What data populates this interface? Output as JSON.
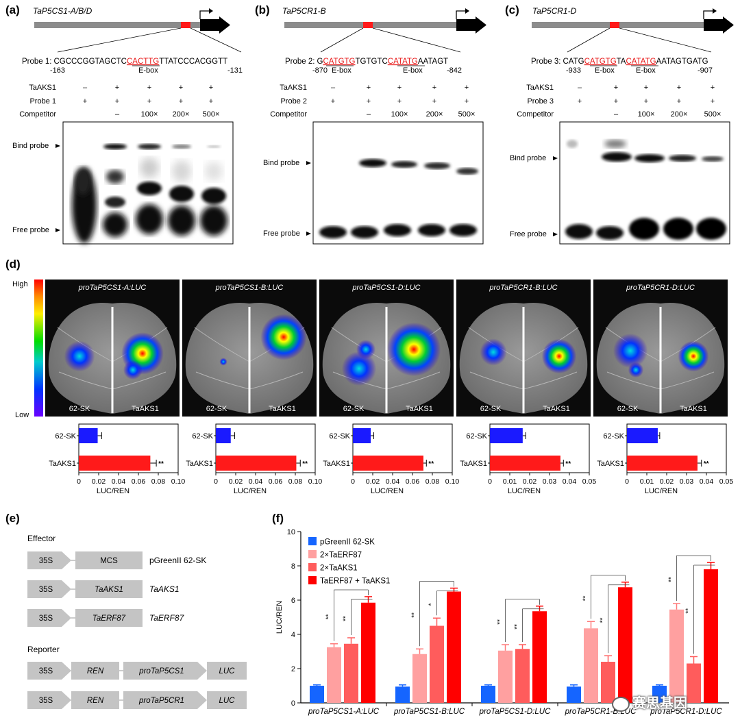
{
  "panel_a": {
    "letter": "(a)",
    "gene": "TaP5CS1-A/B/D",
    "probe_label": "Probe 1:",
    "seq_pre": "CGCCCGGTAGCTC",
    "seq_ebox": "CACTTG",
    "seq_post": "TTATCCCACGGTT",
    "pos_left": "-163",
    "pos_right": "-131",
    "ebox_label": "E-box",
    "row_labels": [
      "TaAKS1",
      "Probe 1",
      "Competitor"
    ],
    "row1": [
      "–",
      "+",
      "+",
      "+",
      "+"
    ],
    "row2": [
      "+",
      "+",
      "+",
      "+",
      "+"
    ],
    "row3": [
      "",
      "–",
      "100×",
      "200×",
      "500×"
    ],
    "bind_label": "Bind probe",
    "free_label": "Free probe"
  },
  "panel_b": {
    "letter": "(b)",
    "gene": "TaP5CR1-B",
    "probe_label": "Probe 2:",
    "seq_p1": "G",
    "seq_e1": "CATGTG",
    "seq_p2": "TGTGTC",
    "seq_e2": "CATATG",
    "seq_p3": "AATAGT",
    "pos_left": "-870",
    "pos_right": "-842",
    "ebox_label": "E-box",
    "row_labels": [
      "TaAKS1",
      "Probe 2",
      "Competitor"
    ],
    "row1": [
      "–",
      "+",
      "+",
      "+",
      "+"
    ],
    "row2": [
      "+",
      "+",
      "+",
      "+",
      "+"
    ],
    "row3": [
      "",
      "–",
      "100×",
      "200×",
      "500×"
    ],
    "bind_label": "Bind probe",
    "free_label": "Free probe"
  },
  "panel_c": {
    "letter": "(c)",
    "gene": "TaP5CR1-D",
    "probe_label": "Probe 3:",
    "seq_p1": "CATG",
    "seq_e1": "CATGTG",
    "seq_p2": "TA",
    "seq_e2": "CATATG",
    "seq_p3": "AATAGTGATG",
    "pos_left": "-933",
    "pos_right": "-907",
    "ebox_label": "E-box",
    "row_labels": [
      "TaAKS1",
      "Probe 3",
      "Competitor"
    ],
    "row1": [
      "–",
      "+",
      "+",
      "+",
      "+"
    ],
    "row2": [
      "+",
      "+",
      "+",
      "+",
      "+"
    ],
    "row3": [
      "",
      "–",
      "100×",
      "200×",
      "500×"
    ],
    "bind_label": "Bind probe",
    "free_label": "Free probe"
  },
  "panel_d": {
    "letter": "(d)",
    "scale_high": "High",
    "scale_low": "Low",
    "leaf_left_label": "62-SK",
    "leaf_right_label": "TaAKS1",
    "xlabel": "LUC/REN",
    "leaves": [
      {
        "title": "proTaP5CS1-A:LUC"
      },
      {
        "title": "proTaP5CS1-B:LUC"
      },
      {
        "title": "proTaP5CS1-D:LUC"
      },
      {
        "title": "proTaP5CR1-B:LUC"
      },
      {
        "title": "proTaP5CR1-D:LUC"
      }
    ]
  },
  "panel_e": {
    "letter": "(e)",
    "effector_title": "Effector",
    "reporter_title": "Reporter",
    "promoter": "35S",
    "effectors": [
      {
        "box": "MCS",
        "name": "pGreenII 62-SK"
      },
      {
        "box": "TaAKS1",
        "name": "TaAKS1"
      },
      {
        "box": "TaERF87",
        "name": "TaERF87"
      }
    ],
    "reporters": [
      {
        "ren": "REN",
        "pro": "proTaP5CS1",
        "luc": "LUC"
      },
      {
        "ren": "REN",
        "pro": "proTaP5CR1",
        "luc": "LUC"
      }
    ]
  },
  "panel_f": {
    "letter": "(f)",
    "watermark": "赛思基因"
  },
  "chart_data": [
    {
      "type": "bar",
      "title": "proTaP5CS1-A:LUC",
      "categories": [
        "62-SK",
        "TaAKS1"
      ],
      "values": [
        0.019,
        0.072
      ],
      "errors": [
        0.004,
        0.006
      ],
      "xlim": [
        0,
        0.1
      ],
      "xticks": [
        "0",
        "0.02",
        "0.04",
        "0.06",
        "0.08",
        "0.10"
      ],
      "xlabel": "LUC/REN",
      "sig": "**",
      "colors": [
        "#1a1aff",
        "#ff1a1a"
      ]
    },
    {
      "type": "bar",
      "title": "proTaP5CS1-B:LUC",
      "categories": [
        "62-SK",
        "TaAKS1"
      ],
      "values": [
        0.015,
        0.081
      ],
      "errors": [
        0.004,
        0.004
      ],
      "xlim": [
        0,
        0.1
      ],
      "xticks": [
        "0",
        "0.02",
        "0.04",
        "0.06",
        "0.08",
        "0.10"
      ],
      "xlabel": "LUC/REN",
      "sig": "**",
      "colors": [
        "#1a1aff",
        "#ff1a1a"
      ]
    },
    {
      "type": "bar",
      "title": "proTaP5CS1-D:LUC",
      "categories": [
        "62-SK",
        "TaAKS1"
      ],
      "values": [
        0.018,
        0.071
      ],
      "errors": [
        0.003,
        0.003
      ],
      "xlim": [
        0,
        0.1
      ],
      "xticks": [
        "0",
        "0.02",
        "0.04",
        "0.06",
        "0.08",
        "0.10"
      ],
      "xlabel": "LUC/REN",
      "sig": "**",
      "colors": [
        "#1a1aff",
        "#ff1a1a"
      ]
    },
    {
      "type": "bar",
      "title": "proTaP5CR1-B:LUC",
      "categories": [
        "62-SK",
        "TaAKS1"
      ],
      "values": [
        0.0165,
        0.0355
      ],
      "errors": [
        0.0015,
        0.0015
      ],
      "xlim": [
        0,
        0.05
      ],
      "xticks": [
        "0",
        "0.01",
        "0.02",
        "0.03",
        "0.04",
        "0.05"
      ],
      "xlabel": "LUC/REN",
      "sig": "**",
      "colors": [
        "#1a1aff",
        "#ff1a1a"
      ]
    },
    {
      "type": "bar",
      "title": "proTaP5CR1-D:LUC",
      "categories": [
        "62-SK",
        "TaAKS1"
      ],
      "values": [
        0.0155,
        0.0355
      ],
      "errors": [
        0.001,
        0.002
      ],
      "xlim": [
        0,
        0.05
      ],
      "xticks": [
        "0",
        "0.01",
        "0.02",
        "0.03",
        "0.04",
        "0.05"
      ],
      "xlabel": "LUC/REN",
      "sig": "**",
      "colors": [
        "#1a1aff",
        "#ff1a1a"
      ]
    },
    {
      "type": "bar",
      "ylabel": "LUC/REN",
      "ylim": [
        0,
        10
      ],
      "yticks": [
        "0",
        "2",
        "4",
        "6",
        "8",
        "10"
      ],
      "categories": [
        "proTaP5CS1-A:LUC",
        "proTaP5CS1-B:LUC",
        "proTaP5CS1-D:LUC",
        "proTaP5CR1-B:LUC",
        "proTaP5CR1-D:LUC"
      ],
      "legend_position": "top-left",
      "series": [
        {
          "name": "pGreenII 62-SK",
          "color": "#1565ff",
          "values": [
            1.0,
            0.95,
            1.0,
            0.95,
            1.0
          ],
          "errors": [
            0.05,
            0.1,
            0.05,
            0.1,
            0.05
          ]
        },
        {
          "name": "2×TaERF87",
          "color": "#ffa0a0",
          "values": [
            3.25,
            2.85,
            3.05,
            4.35,
            5.45
          ],
          "errors": [
            0.2,
            0.3,
            0.35,
            0.4,
            0.35
          ]
        },
        {
          "name": "2×TaAKS1",
          "color": "#ff5c5c",
          "values": [
            3.45,
            4.5,
            3.15,
            2.4,
            2.3
          ],
          "errors": [
            0.35,
            0.45,
            0.25,
            0.35,
            0.4
          ]
        },
        {
          "name": "TaERF87 + TaAKS1",
          "color": "#ff0000",
          "values": [
            5.85,
            6.5,
            5.35,
            6.75,
            7.8
          ],
          "errors": [
            0.35,
            0.2,
            0.3,
            0.3,
            0.4
          ]
        }
      ],
      "sig_erf": [
        "**",
        "**",
        "**",
        "**",
        "**"
      ],
      "sig_aks": [
        "**",
        "*",
        "**",
        "**",
        "**"
      ]
    }
  ]
}
